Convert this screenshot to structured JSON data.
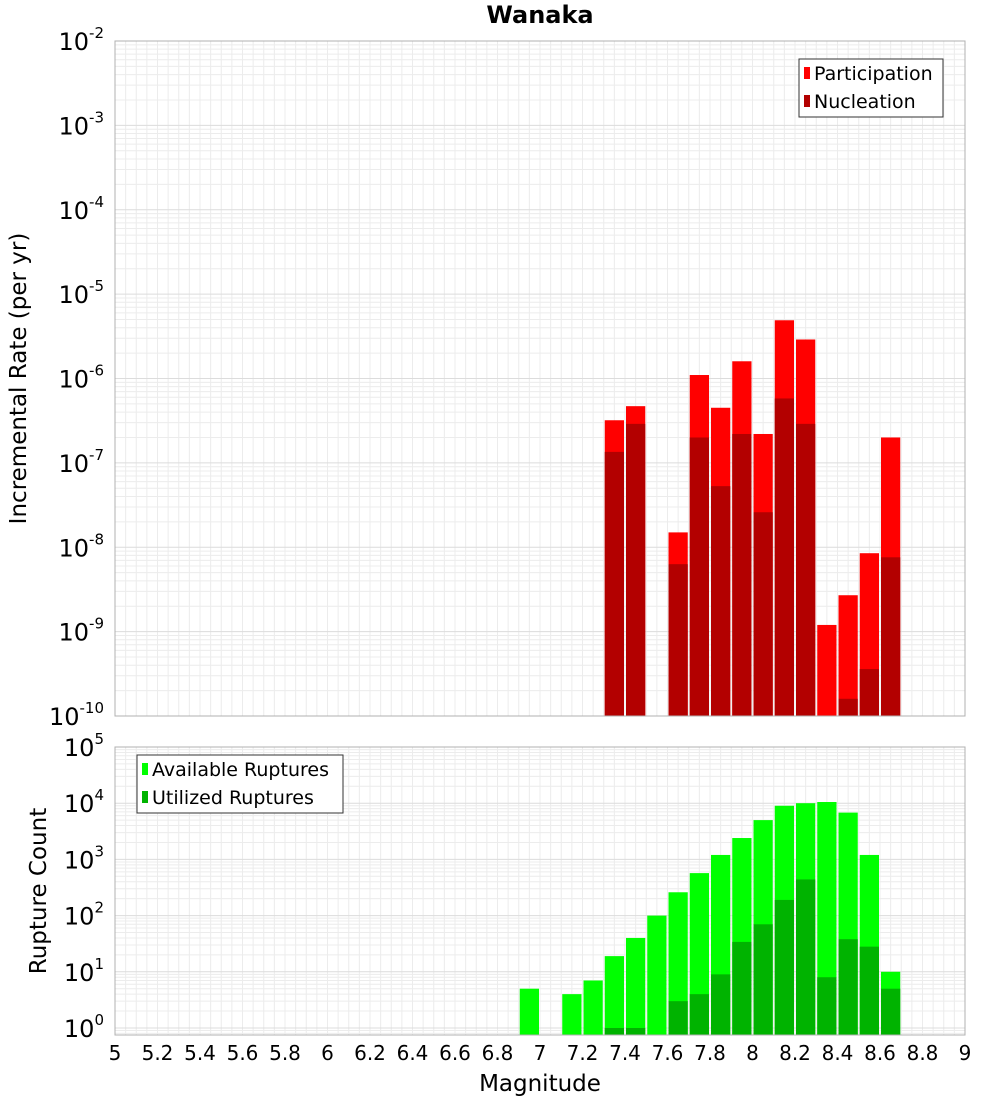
{
  "chart_data": [
    {
      "type": "bar",
      "title": "Wanaka",
      "xlabel": "",
      "ylabel": "Incremental Rate (per yr)",
      "y_scale": "log",
      "ylim": [
        1e-10,
        0.01
      ],
      "y_ticks": [
        {
          "base": "10",
          "exp": "-2",
          "value": 0.01
        },
        {
          "base": "10",
          "exp": "-3",
          "value": 0.001
        },
        {
          "base": "10",
          "exp": "-4",
          "value": 0.0001
        },
        {
          "base": "10",
          "exp": "-5",
          "value": 1e-05
        },
        {
          "base": "10",
          "exp": "-6",
          "value": 1e-06
        },
        {
          "base": "10",
          "exp": "-7",
          "value": 1e-07
        },
        {
          "base": "10",
          "exp": "-8",
          "value": 1e-08
        },
        {
          "base": "10",
          "exp": "-9",
          "value": 1e-09
        },
        {
          "base": "10",
          "exp": "-10",
          "value": 1e-10
        }
      ],
      "xlim": [
        5,
        9
      ],
      "bar_width": 0.1,
      "grid": true,
      "legend_position": "top-right",
      "x": [
        7.35,
        7.45,
        7.65,
        7.75,
        7.85,
        7.95,
        8.05,
        8.15,
        8.25,
        8.35,
        8.45,
        8.55,
        8.65
      ],
      "series": [
        {
          "name": "Participation",
          "color": "#ff0000",
          "values": [
            3.2e-07,
            4.7e-07,
            1.5e-08,
            1.1e-06,
            4.5e-07,
            1.6e-06,
            2.2e-07,
            4.9e-06,
            2.9e-06,
            1.2e-09,
            2.7e-09,
            8.5e-09,
            2e-07
          ]
        },
        {
          "name": "Nucleation",
          "color": "#b30000",
          "values": [
            1.35e-07,
            2.9e-07,
            6.3e-09,
            2e-07,
            5.3e-08,
            2.2e-07,
            2.6e-08,
            5.8e-07,
            2.9e-07,
            null,
            1.6e-10,
            3.6e-10,
            7.6e-09
          ]
        }
      ]
    },
    {
      "type": "bar",
      "title": "",
      "xlabel": "Magnitude",
      "ylabel": "Rupture Count",
      "y_scale": "log",
      "ylim": [
        0.75,
        100000
      ],
      "y_ticks": [
        {
          "base": "10",
          "exp": "5",
          "value": 100000
        },
        {
          "base": "10",
          "exp": "4",
          "value": 10000
        },
        {
          "base": "10",
          "exp": "3",
          "value": 1000
        },
        {
          "base": "10",
          "exp": "2",
          "value": 100
        },
        {
          "base": "10",
          "exp": "1",
          "value": 10
        },
        {
          "base": "10",
          "exp": "0",
          "value": 1
        }
      ],
      "xlim": [
        5,
        9
      ],
      "x_ticks": [
        "5",
        "5.2",
        "5.4",
        "5.6",
        "5.8",
        "6",
        "6.2",
        "6.4",
        "6.6",
        "6.8",
        "7",
        "7.2",
        "7.4",
        "7.6",
        "7.8",
        "8",
        "8.2",
        "8.4",
        "8.6",
        "8.8",
        "9"
      ],
      "bar_width": 0.1,
      "grid": true,
      "legend_position": "top-left",
      "x": [
        6.95,
        7.15,
        7.25,
        7.35,
        7.45,
        7.55,
        7.65,
        7.75,
        7.85,
        7.95,
        8.05,
        8.15,
        8.25,
        8.35,
        8.45,
        8.55,
        8.65
      ],
      "series": [
        {
          "name": "Available Ruptures",
          "color": "#00ff00",
          "values": [
            5,
            4,
            7,
            19,
            40,
            100,
            260,
            570,
            1200,
            2400,
            5000,
            9000,
            10000,
            10500,
            6800,
            1200,
            10
          ]
        },
        {
          "name": "Utilized Ruptures",
          "color": "#00b300",
          "values": [
            null,
            null,
            null,
            1,
            1,
            null,
            3,
            4,
            9,
            34,
            70,
            190,
            440,
            8,
            38,
            28,
            5
          ]
        }
      ]
    }
  ]
}
